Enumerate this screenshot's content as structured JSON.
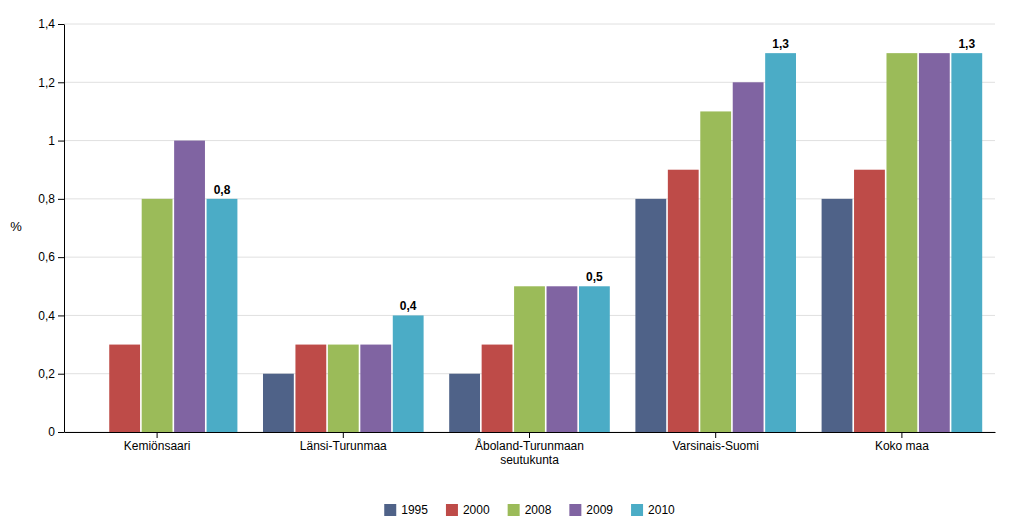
{
  "chart_data": {
    "type": "bar",
    "categories": [
      "Kemiönsaari",
      "Länsi-Turunmaa",
      "Åboland-Turunmaan\nseutukunta",
      "Varsinais-Suomi",
      "Koko maa"
    ],
    "series": [
      {
        "name": "1995",
        "color": "#4F6288",
        "values": [
          0.0,
          0.2,
          0.2,
          0.8,
          0.8
        ]
      },
      {
        "name": "2000",
        "color": "#BE4B48",
        "values": [
          0.3,
          0.3,
          0.3,
          0.9,
          0.9
        ]
      },
      {
        "name": "2008",
        "color": "#9BBB59",
        "values": [
          0.8,
          0.3,
          0.5,
          1.1,
          1.3
        ]
      },
      {
        "name": "2009",
        "color": "#8064A2",
        "values": [
          1.0,
          0.3,
          0.5,
          1.2,
          1.3
        ]
      },
      {
        "name": "2010",
        "color": "#4BACC6",
        "values": [
          0.8,
          0.4,
          0.5,
          1.3,
          1.3
        ],
        "data_labels": true,
        "value_labels": [
          "0,8",
          "0,4",
          "0,5",
          "1,3",
          "1,3"
        ]
      }
    ],
    "y_label": "%",
    "ylim": [
      0,
      1.4
    ],
    "yticks": [
      0,
      {
        "value": 0.2,
        "label": "0,2"
      },
      {
        "value": 0.4,
        "label": "0,4"
      },
      {
        "value": 0.6,
        "label": "0,6"
      },
      {
        "value": 0.8,
        "label": "0,8"
      },
      1,
      {
        "value": 1.2,
        "label": "1,2"
      },
      {
        "value": 1.4,
        "label": "1,4"
      }
    ],
    "grid": true,
    "legend": "bottom"
  }
}
